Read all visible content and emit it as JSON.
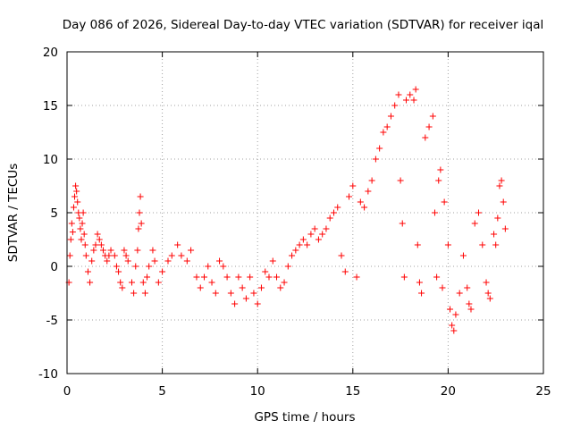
{
  "chart_data": {
    "type": "scatter",
    "title": "Day 086 of 2026, Sidereal Day-to-day VTEC variation (SDTVAR) for receiver iqal",
    "xlabel": "GPS time / hours",
    "ylabel": "SDTVAR / TECUs",
    "xlim": [
      0,
      25
    ],
    "ylim": [
      -10,
      20
    ],
    "xticks": [
      "0",
      "5",
      "10",
      "15",
      "20",
      "25"
    ],
    "yticks": [
      "-10",
      "-5",
      "0",
      "5",
      "10",
      "15",
      "20"
    ],
    "grid": true,
    "marker": "+",
    "color": "#ff0000",
    "series": [
      {
        "name": "SDTVAR",
        "points": [
          [
            0.1,
            -1.5
          ],
          [
            0.15,
            1.0
          ],
          [
            0.2,
            2.5
          ],
          [
            0.25,
            4.0
          ],
          [
            0.3,
            3.2
          ],
          [
            0.35,
            5.5
          ],
          [
            0.4,
            6.5
          ],
          [
            0.45,
            7.5
          ],
          [
            0.5,
            7.0
          ],
          [
            0.55,
            6.0
          ],
          [
            0.6,
            5.0
          ],
          [
            0.65,
            4.5
          ],
          [
            0.7,
            3.5
          ],
          [
            0.75,
            2.5
          ],
          [
            0.8,
            4.0
          ],
          [
            0.85,
            5.0
          ],
          [
            0.9,
            3.0
          ],
          [
            0.95,
            2.0
          ],
          [
            1.0,
            1.0
          ],
          [
            1.1,
            -0.5
          ],
          [
            1.2,
            -1.5
          ],
          [
            1.3,
            0.5
          ],
          [
            1.4,
            1.5
          ],
          [
            1.5,
            2.0
          ],
          [
            1.6,
            3.0
          ],
          [
            1.7,
            2.5
          ],
          [
            1.8,
            2.0
          ],
          [
            1.9,
            1.5
          ],
          [
            2.0,
            1.0
          ],
          [
            2.1,
            0.5
          ],
          [
            2.2,
            1.0
          ],
          [
            2.3,
            1.5
          ],
          [
            2.5,
            1.0
          ],
          [
            2.6,
            0.0
          ],
          [
            2.7,
            -0.5
          ],
          [
            2.8,
            -1.5
          ],
          [
            2.9,
            -2.0
          ],
          [
            3.0,
            1.5
          ],
          [
            3.1,
            1.0
          ],
          [
            3.2,
            0.5
          ],
          [
            3.4,
            -1.5
          ],
          [
            3.5,
            -2.5
          ],
          [
            3.6,
            0.0
          ],
          [
            3.7,
            1.5
          ],
          [
            3.75,
            3.5
          ],
          [
            3.8,
            5.0
          ],
          [
            3.85,
            6.5
          ],
          [
            3.9,
            4.0
          ],
          [
            4.0,
            -1.5
          ],
          [
            4.1,
            -2.5
          ],
          [
            4.2,
            -1.0
          ],
          [
            4.3,
            0.0
          ],
          [
            4.5,
            1.5
          ],
          [
            4.6,
            0.5
          ],
          [
            4.8,
            -1.5
          ],
          [
            5.0,
            -0.5
          ],
          [
            5.3,
            0.5
          ],
          [
            5.5,
            1.0
          ],
          [
            5.8,
            2.0
          ],
          [
            6.0,
            1.0
          ],
          [
            6.3,
            0.5
          ],
          [
            6.5,
            1.5
          ],
          [
            6.8,
            -1.0
          ],
          [
            7.0,
            -2.0
          ],
          [
            7.2,
            -1.0
          ],
          [
            7.4,
            0.0
          ],
          [
            7.6,
            -1.5
          ],
          [
            7.8,
            -2.5
          ],
          [
            8.0,
            0.5
          ],
          [
            8.2,
            0.0
          ],
          [
            8.4,
            -1.0
          ],
          [
            8.6,
            -2.5
          ],
          [
            8.8,
            -3.5
          ],
          [
            9.0,
            -1.0
          ],
          [
            9.2,
            -2.0
          ],
          [
            9.4,
            -3.0
          ],
          [
            9.6,
            -1.0
          ],
          [
            9.8,
            -2.5
          ],
          [
            10.0,
            -3.5
          ],
          [
            10.2,
            -2.0
          ],
          [
            10.4,
            -0.5
          ],
          [
            10.6,
            -1.0
          ],
          [
            10.8,
            0.5
          ],
          [
            11.0,
            -1.0
          ],
          [
            11.2,
            -2.0
          ],
          [
            11.4,
            -1.5
          ],
          [
            11.6,
            0.0
          ],
          [
            11.8,
            1.0
          ],
          [
            12.0,
            1.5
          ],
          [
            12.2,
            2.0
          ],
          [
            12.4,
            2.5
          ],
          [
            12.6,
            2.0
          ],
          [
            12.8,
            3.0
          ],
          [
            13.0,
            3.5
          ],
          [
            13.2,
            2.5
          ],
          [
            13.4,
            3.0
          ],
          [
            13.6,
            3.5
          ],
          [
            13.8,
            4.5
          ],
          [
            14.0,
            5.0
          ],
          [
            14.2,
            5.5
          ],
          [
            14.4,
            1.0
          ],
          [
            14.6,
            -0.5
          ],
          [
            14.8,
            6.5
          ],
          [
            15.0,
            7.5
          ],
          [
            15.2,
            -1.0
          ],
          [
            15.4,
            6.0
          ],
          [
            15.6,
            5.5
          ],
          [
            15.8,
            7.0
          ],
          [
            16.0,
            8.0
          ],
          [
            16.2,
            10.0
          ],
          [
            16.4,
            11.0
          ],
          [
            16.6,
            12.5
          ],
          [
            16.8,
            13.0
          ],
          [
            17.0,
            14.0
          ],
          [
            17.2,
            15.0
          ],
          [
            17.4,
            16.0
          ],
          [
            17.5,
            8.0
          ],
          [
            17.6,
            4.0
          ],
          [
            17.7,
            -1.0
          ],
          [
            17.8,
            15.5
          ],
          [
            18.0,
            16.0
          ],
          [
            18.2,
            15.5
          ],
          [
            18.3,
            16.5
          ],
          [
            18.4,
            2.0
          ],
          [
            18.5,
            -1.5
          ],
          [
            18.6,
            -2.5
          ],
          [
            18.8,
            12.0
          ],
          [
            19.0,
            13.0
          ],
          [
            19.2,
            14.0
          ],
          [
            19.3,
            5.0
          ],
          [
            19.4,
            -1.0
          ],
          [
            19.5,
            8.0
          ],
          [
            19.6,
            9.0
          ],
          [
            19.7,
            -2.0
          ],
          [
            19.8,
            6.0
          ],
          [
            20.0,
            2.0
          ],
          [
            20.1,
            -4.0
          ],
          [
            20.2,
            -5.5
          ],
          [
            20.3,
            -6.0
          ],
          [
            20.4,
            -4.5
          ],
          [
            20.6,
            -2.5
          ],
          [
            20.8,
            1.0
          ],
          [
            21.0,
            -2.0
          ],
          [
            21.1,
            -3.5
          ],
          [
            21.2,
            -4.0
          ],
          [
            21.4,
            4.0
          ],
          [
            21.6,
            5.0
          ],
          [
            21.8,
            2.0
          ],
          [
            22.0,
            -1.5
          ],
          [
            22.1,
            -2.5
          ],
          [
            22.2,
            -3.0
          ],
          [
            22.4,
            3.0
          ],
          [
            22.5,
            2.0
          ],
          [
            22.6,
            4.5
          ],
          [
            22.7,
            7.5
          ],
          [
            22.8,
            8.0
          ],
          [
            22.9,
            6.0
          ],
          [
            23.0,
            3.5
          ]
        ]
      }
    ]
  }
}
